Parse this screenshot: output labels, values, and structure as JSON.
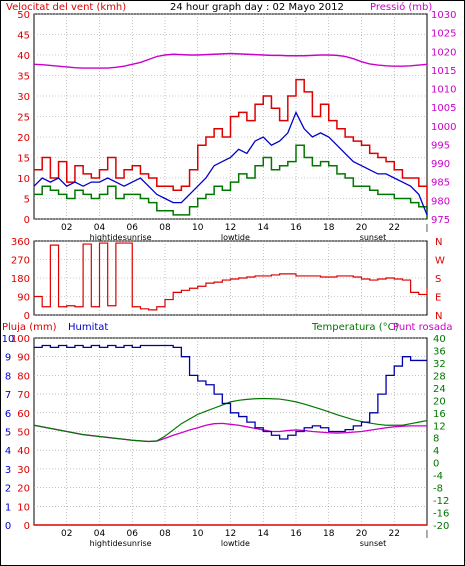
{
  "colors": {
    "border": "#000000",
    "wind_speed": "#dd0000",
    "wind_gust": "#dd0000",
    "wind_avg": "#0000cc",
    "wind_low": "#007700",
    "pressure": "#cc00cc",
    "direction": "#dd0000",
    "humidity": "#0000aa",
    "temperature": "#007700",
    "dewpoint": "#cc00cc",
    "rain": "#dd0000",
    "label_red": "#dd0000",
    "label_blue": "#0000cc",
    "label_green": "#007700",
    "label_magenta": "#cc00cc"
  },
  "header": {
    "left": "Velocitat del vent (kmh)",
    "center": "24 hour graph day : 02 Mayo 2012",
    "right": "Pressió (mb)"
  },
  "time_axis": {
    "hours": [
      "02",
      "04",
      "06",
      "08",
      "10",
      "12",
      "14",
      "16",
      "18",
      "20",
      "22"
    ],
    "events": [
      "hightide",
      "sunrise",
      "lowtide",
      "sunset"
    ]
  },
  "chart_data": [
    {
      "type": "line",
      "name": "wind",
      "y_left_ticks": [
        0,
        5,
        10,
        15,
        20,
        25,
        30,
        35,
        40,
        45,
        50
      ],
      "y_right_ticks": [
        975,
        980,
        985,
        990,
        995,
        1000,
        1005,
        1010,
        1015,
        1020,
        1025,
        1030
      ],
      "ylim_left": [
        0,
        50
      ],
      "ylim_right": [
        975,
        1030
      ],
      "x_hours": [
        0,
        0.5,
        1,
        1.5,
        2,
        2.5,
        3,
        3.5,
        4,
        4.5,
        5,
        5.5,
        6,
        6.5,
        7,
        7.5,
        8,
        8.5,
        9,
        9.5,
        10,
        10.5,
        11,
        11.5,
        12,
        12.5,
        13,
        13.5,
        14,
        14.5,
        15,
        15.5,
        16,
        16.5,
        17,
        17.5,
        18,
        18.5,
        19,
        19.5,
        20,
        20.5,
        21,
        21.5,
        22,
        22.5,
        23,
        23.5,
        24
      ],
      "series": [
        {
          "key": "gust",
          "values": [
            12,
            15,
            10,
            14,
            9,
            13,
            11,
            10,
            12,
            15,
            10,
            12,
            13,
            11,
            10,
            8,
            8,
            7,
            8,
            12,
            18,
            20,
            22,
            20,
            25,
            26,
            24,
            28,
            30,
            27,
            24,
            30,
            34,
            31,
            25,
            28,
            24,
            22,
            20,
            19,
            18,
            16,
            15,
            14,
            12,
            10,
            10,
            8,
            2
          ]
        },
        {
          "key": "avg",
          "values": [
            8,
            10,
            9,
            10,
            8,
            9,
            8,
            9,
            9,
            10,
            9,
            8,
            9,
            10,
            8,
            6,
            5,
            4,
            4,
            6,
            8,
            10,
            13,
            14,
            15,
            17,
            16,
            19,
            20,
            18,
            19,
            21,
            26,
            22,
            20,
            21,
            20,
            18,
            16,
            14,
            13,
            12,
            11,
            11,
            10,
            9,
            8,
            6,
            1
          ]
        },
        {
          "key": "low",
          "values": [
            6,
            8,
            7,
            6,
            5,
            7,
            6,
            5,
            6,
            8,
            5,
            6,
            6,
            5,
            4,
            2,
            2,
            1,
            1,
            3,
            5,
            6,
            8,
            7,
            9,
            11,
            10,
            13,
            15,
            12,
            13,
            14,
            18,
            15,
            13,
            14,
            13,
            11,
            10,
            8,
            8,
            7,
            6,
            6,
            5,
            5,
            4,
            3,
            0
          ]
        },
        {
          "key": "pressure",
          "values": [
            1016.5,
            1016.4,
            1016.2,
            1016.0,
            1015.8,
            1015.6,
            1015.5,
            1015.5,
            1015.5,
            1015.5,
            1015.7,
            1016.0,
            1016.5,
            1017.0,
            1017.8,
            1018.6,
            1019.0,
            1019.2,
            1019.1,
            1019.0,
            1019.0,
            1019.1,
            1019.2,
            1019.3,
            1019.4,
            1019.3,
            1019.2,
            1019.1,
            1019.0,
            1018.9,
            1018.9,
            1018.8,
            1018.8,
            1018.8,
            1018.9,
            1019.0,
            1019.0,
            1018.9,
            1018.6,
            1018.0,
            1017.2,
            1016.6,
            1016.3,
            1016.1,
            1016.0,
            1016.0,
            1016.1,
            1016.3,
            1016.5
          ]
        }
      ]
    },
    {
      "type": "line",
      "name": "wind_direction",
      "y_left_ticks": [
        0,
        90,
        180,
        270,
        360
      ],
      "y_right_labels": [
        "N",
        "E",
        "S",
        "W",
        "N"
      ],
      "ylim": [
        0,
        360
      ],
      "x_hours": [
        0,
        0.5,
        1,
        1.5,
        2,
        2.5,
        3,
        3.5,
        4,
        4.5,
        5,
        5.5,
        6,
        6.5,
        7,
        7.5,
        8,
        8.5,
        9,
        9.5,
        10,
        10.5,
        11,
        11.5,
        12,
        12.5,
        13,
        13.5,
        14,
        14.5,
        15,
        15.5,
        16,
        16.5,
        17,
        17.5,
        18,
        18.5,
        19,
        19.5,
        20,
        20.5,
        21,
        21.5,
        22,
        22.5,
        23,
        23.5,
        24
      ],
      "values": [
        90,
        40,
        340,
        40,
        45,
        40,
        345,
        40,
        350,
        45,
        350,
        350,
        40,
        30,
        25,
        40,
        75,
        110,
        120,
        130,
        140,
        155,
        160,
        170,
        175,
        180,
        185,
        190,
        190,
        195,
        200,
        200,
        190,
        190,
        190,
        185,
        185,
        190,
        190,
        185,
        175,
        170,
        175,
        180,
        175,
        170,
        110,
        100,
        130
      ]
    },
    {
      "type": "line",
      "name": "temperature_humidity",
      "left_outer_ticks": [
        0,
        1,
        2,
        3,
        4,
        5,
        6,
        7,
        8,
        9,
        10
      ],
      "left_inner_ticks": [
        0,
        10,
        20,
        30,
        40,
        50,
        60,
        70,
        80,
        90,
        100
      ],
      "right_ticks": [
        -20,
        -16,
        -12,
        -8,
        -4,
        0,
        4,
        8,
        12,
        16,
        20,
        24,
        28,
        32,
        36,
        40
      ],
      "ylim_humidity": [
        0,
        100
      ],
      "ylim_temperature": [
        -20,
        40
      ],
      "ylim_rain": [
        0,
        30
      ],
      "x_hours": [
        0,
        0.5,
        1,
        1.5,
        2,
        2.5,
        3,
        3.5,
        4,
        4.5,
        5,
        5.5,
        6,
        6.5,
        7,
        7.5,
        8,
        8.5,
        9,
        9.5,
        10,
        10.5,
        11,
        11.5,
        12,
        12.5,
        13,
        13.5,
        14,
        14.5,
        15,
        15.5,
        16,
        16.5,
        17,
        17.5,
        18,
        18.5,
        19,
        19.5,
        20,
        20.5,
        21,
        21.5,
        22,
        22.5,
        23,
        23.5,
        24
      ],
      "series": [
        {
          "key": "humidity",
          "values": [
            95,
            96,
            95,
            96,
            95,
            96,
            95,
            96,
            95,
            96,
            95,
            96,
            95,
            96,
            96,
            96,
            96,
            95,
            90,
            80,
            77,
            75,
            70,
            65,
            60,
            58,
            55,
            52,
            50,
            48,
            46,
            48,
            50,
            52,
            53,
            52,
            50,
            50,
            51,
            53,
            55,
            60,
            70,
            80,
            85,
            90,
            88,
            88,
            88
          ]
        },
        {
          "key": "temperature",
          "values": [
            12,
            11.5,
            11,
            10.5,
            10,
            9.5,
            9,
            8.7,
            8.4,
            8.1,
            7.8,
            7.5,
            7.2,
            7,
            6.8,
            7,
            8.5,
            10.5,
            12.5,
            14,
            15.5,
            16.5,
            17.5,
            18.5,
            19.5,
            20,
            20.3,
            20.5,
            20.6,
            20.5,
            20.4,
            20,
            19.5,
            18.8,
            18,
            17.2,
            16.3,
            15.4,
            14.6,
            13.8,
            13.2,
            12.7,
            12.3,
            12,
            12,
            12,
            12.5,
            13,
            13.5
          ]
        },
        {
          "key": "dewpoint",
          "values": [
            12,
            11.5,
            11,
            10.5,
            10,
            9.5,
            9,
            8.7,
            8.4,
            8.1,
            7.8,
            7.5,
            7.2,
            7,
            6.8,
            6.9,
            7.8,
            8.8,
            9.6,
            10.5,
            11.2,
            12,
            12.5,
            12.6,
            12.3,
            12,
            11.5,
            11,
            10.5,
            10,
            10,
            10.3,
            10.5,
            10.3,
            10,
            9.8,
            9.6,
            9.5,
            9.6,
            9.8,
            10,
            10.4,
            10.8,
            11.2,
            11.5,
            11.7,
            11.8,
            11.8,
            11.8
          ]
        },
        {
          "key": "rain",
          "values": [
            0,
            0,
            0,
            0,
            0,
            0,
            0,
            0,
            0,
            0,
            0,
            0,
            0,
            0,
            0,
            0,
            0,
            0,
            0,
            0,
            0,
            0,
            0,
            0,
            0,
            0,
            0,
            0,
            0,
            0,
            0,
            0,
            0,
            0,
            0,
            0,
            0,
            0,
            0,
            0,
            0,
            0,
            0,
            0,
            0,
            0,
            0,
            0,
            0
          ]
        }
      ]
    }
  ],
  "panel3_labels": {
    "pluja": "Pluja (mm)",
    "humitat": "Humitat",
    "temperatura": "Temperatura (°C)",
    "punt_rosada": "Punt rosada"
  }
}
